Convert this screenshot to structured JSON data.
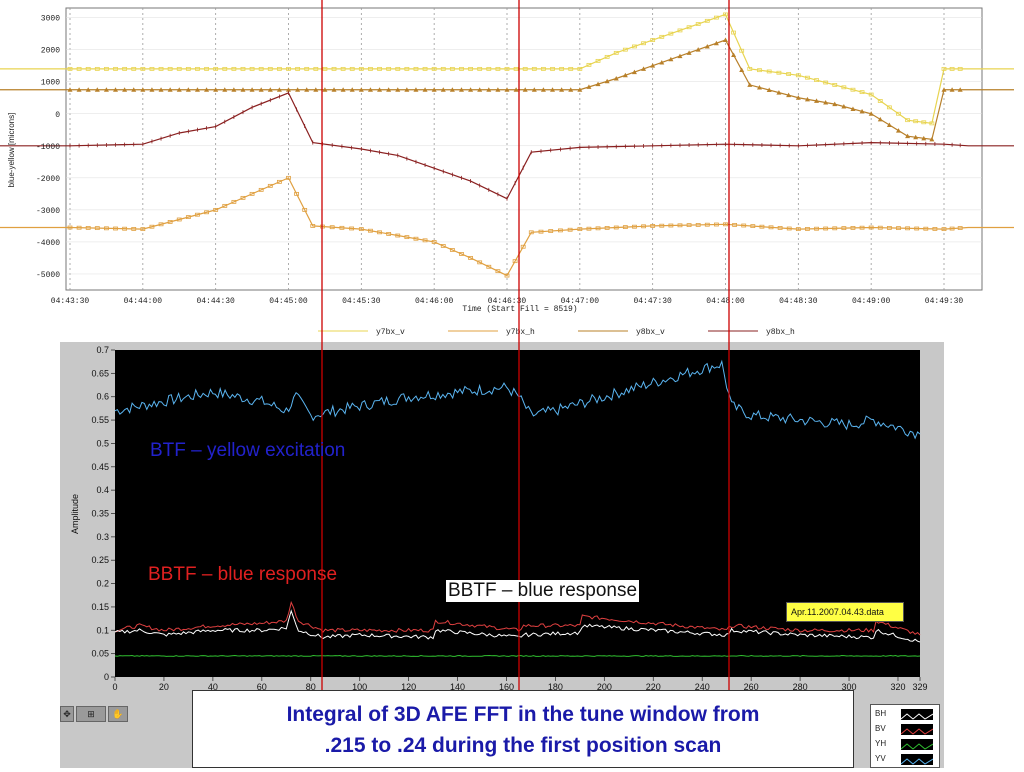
{
  "chart_data": [
    {
      "type": "line",
      "xlabel": "Time (Start Fill = 8519)",
      "ylabel": "blue-yellow [microns]",
      "x_tick_labels": [
        "04:43:30",
        "04:44:00",
        "04:44:30",
        "04:45:00",
        "04:45:30",
        "04:46:00",
        "04:46:30",
        "04:47:00",
        "04:47:30",
        "04:48:00",
        "04:48:30",
        "04:49:00",
        "04:49:30"
      ],
      "y_tick_labels": [
        "3000",
        "2000",
        "1000",
        "0",
        "-1000",
        "-2000",
        "-3000",
        "-4000",
        "-5000"
      ],
      "ylim": [
        -5500,
        3300
      ],
      "grid": true,
      "legend_position": "bottom",
      "series": [
        {
          "name": "y7bx_v",
          "color": "#e8d450",
          "x": [
            "04:43:30",
            "04:44:00",
            "04:44:30",
            "04:45:00",
            "04:45:30",
            "04:46:00",
            "04:46:30",
            "04:47:00",
            "04:47:15",
            "04:47:30",
            "04:47:45",
            "04:48:00",
            "04:48:10",
            "04:48:30",
            "04:48:45",
            "04:49:00",
            "04:49:15",
            "04:49:25",
            "04:49:30",
            "04:49:40"
          ],
          "y": [
            1400,
            1400,
            1400,
            1400,
            1400,
            1400,
            1400,
            1400,
            1900,
            2300,
            2700,
            3100,
            1400,
            1200,
            900,
            600,
            -200,
            -300,
            1400,
            1400
          ]
        },
        {
          "name": "y7bx_h",
          "color": "#e0a040",
          "x": [
            "04:43:30",
            "04:44:00",
            "04:44:15",
            "04:44:30",
            "04:44:45",
            "04:45:00",
            "04:45:10",
            "04:45:30",
            "04:45:45",
            "04:46:00",
            "04:46:15",
            "04:46:30",
            "04:46:40",
            "04:47:00",
            "04:47:30",
            "04:48:00",
            "04:48:30",
            "04:49:00",
            "04:49:30",
            "04:49:40"
          ],
          "y": [
            -3550,
            -3600,
            -3300,
            -3000,
            -2500,
            -2000,
            -3500,
            -3600,
            -3800,
            -4000,
            -4500,
            -5050,
            -3700,
            -3600,
            -3500,
            -3450,
            -3600,
            -3550,
            -3600,
            -3550
          ]
        },
        {
          "name": "y8bx_v",
          "color": "#b8802a",
          "x": [
            "04:43:30",
            "04:44:00",
            "04:44:30",
            "04:45:00",
            "04:45:30",
            "04:46:00",
            "04:46:30",
            "04:47:00",
            "04:47:15",
            "04:47:30",
            "04:47:45",
            "04:48:00",
            "04:48:10",
            "04:48:30",
            "04:48:45",
            "04:49:00",
            "04:49:15",
            "04:49:25",
            "04:49:30",
            "04:49:40"
          ],
          "y": [
            750,
            750,
            750,
            750,
            750,
            750,
            750,
            750,
            1100,
            1500,
            1900,
            2300,
            900,
            500,
            300,
            0,
            -700,
            -800,
            750,
            750
          ]
        },
        {
          "name": "y8bx_h",
          "color": "#8a2020",
          "x": [
            "04:43:30",
            "04:44:00",
            "04:44:15",
            "04:44:30",
            "04:44:45",
            "04:45:00",
            "04:45:10",
            "04:45:30",
            "04:45:45",
            "04:46:00",
            "04:46:15",
            "04:46:30",
            "04:46:40",
            "04:47:00",
            "04:47:30",
            "04:48:00",
            "04:48:30",
            "04:49:00",
            "04:49:30",
            "04:49:40"
          ],
          "y": [
            -1000,
            -950,
            -600,
            -400,
            200,
            650,
            -900,
            -1100,
            -1300,
            -1700,
            -2100,
            -2650,
            -1200,
            -1050,
            -1000,
            -950,
            -1000,
            -900,
            -950,
            -1000
          ]
        }
      ]
    },
    {
      "type": "line",
      "ylabel": "Amplitude",
      "xlim": [
        0,
        329
      ],
      "ylim": [
        0,
        0.7
      ],
      "x_tick_labels": [
        "0",
        "20",
        "40",
        "60",
        "80",
        "100",
        "120",
        "140",
        "160",
        "180",
        "200",
        "220",
        "240",
        "260",
        "280",
        "300",
        "320",
        "329"
      ],
      "y_tick_labels": [
        "0",
        "0.05",
        "0.1",
        "0.15",
        "0.2",
        "0.25",
        "0.3",
        "0.35",
        "0.4",
        "0.45",
        "0.5",
        "0.55",
        "0.6",
        "0.65",
        "0.7"
      ],
      "series": [
        {
          "name": "YV",
          "color": "#5ab4f0",
          "x": [
            0,
            20,
            40,
            60,
            70,
            74,
            80,
            100,
            120,
            140,
            160,
            165,
            170,
            180,
            200,
            220,
            240,
            248,
            252,
            260,
            280,
            300,
            310,
            329
          ],
          "y": [
            0.57,
            0.59,
            0.61,
            0.59,
            0.57,
            0.6,
            0.56,
            0.58,
            0.6,
            0.61,
            0.62,
            0.6,
            0.56,
            0.57,
            0.6,
            0.63,
            0.66,
            0.67,
            0.58,
            0.56,
            0.55,
            0.54,
            0.55,
            0.52
          ]
        },
        {
          "name": "BV",
          "color": "#e04040",
          "x": [
            0,
            10,
            20,
            40,
            60,
            70,
            72,
            75,
            85,
            100,
            130,
            131,
            165,
            167,
            190,
            191,
            250,
            252,
            280,
            310,
            311,
            329
          ],
          "y": [
            0.1,
            0.11,
            0.1,
            0.11,
            0.115,
            0.12,
            0.16,
            0.12,
            0.1,
            0.1,
            0.1,
            0.12,
            0.1,
            0.11,
            0.11,
            0.13,
            0.1,
            0.11,
            0.1,
            0.1,
            0.12,
            0.09
          ]
        },
        {
          "name": "BH",
          "color": "#ffffff",
          "x": [
            0,
            10,
            20,
            40,
            60,
            70,
            72,
            75,
            85,
            100,
            130,
            131,
            165,
            167,
            190,
            191,
            250,
            252,
            280,
            310,
            311,
            329
          ],
          "y": [
            0.095,
            0.1,
            0.09,
            0.1,
            0.1,
            0.105,
            0.14,
            0.1,
            0.085,
            0.09,
            0.085,
            0.1,
            0.085,
            0.09,
            0.095,
            0.11,
            0.09,
            0.1,
            0.09,
            0.085,
            0.1,
            0.075
          ]
        },
        {
          "name": "YH",
          "color": "#30c030",
          "x": [
            0,
            329
          ],
          "y": [
            0.045,
            0.045
          ]
        }
      ],
      "annotations": [
        "BTF – yellow excitation",
        "BBTF – blue response",
        "BBTF – blue response"
      ],
      "date_label": "Apr.11.2007.04.43.data",
      "legend": [
        "BH",
        "BV",
        "YH",
        "YV"
      ]
    }
  ],
  "labels": {
    "btf_yellow": "BTF – yellow excitation",
    "bbtf_blue_red": "BBTF – blue response",
    "bbtf_blue_black": "BBTF – blue response",
    "date_box": "Apr.11.2007.04.43.data",
    "caption_line1": "Integral of 3D AFE FFT in the tune window from",
    "caption_line2": ".215 to .24 during the first position scan"
  },
  "legend_bottom": [
    {
      "name": "BH",
      "color": "#ffffff"
    },
    {
      "name": "BV",
      "color": "#e04040"
    },
    {
      "name": "YH",
      "color": "#30c030"
    },
    {
      "name": "YV",
      "color": "#5ab4f0"
    }
  ],
  "marker_lines_color": "#cc0000"
}
